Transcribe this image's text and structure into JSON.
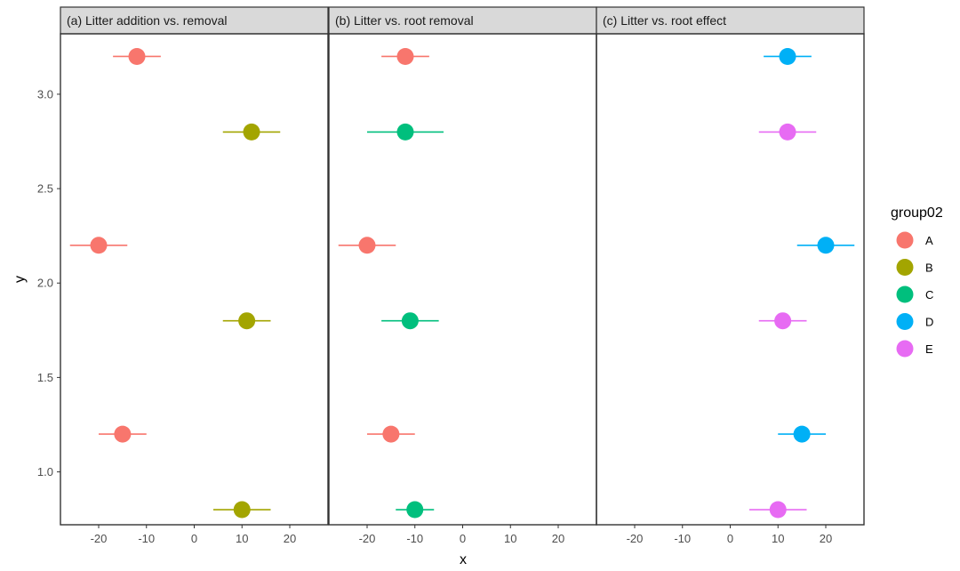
{
  "chart_data": {
    "type": "scatter",
    "xlabel": "x",
    "ylabel": "y",
    "xlim": [
      -28,
      28
    ],
    "ylim": [
      0.72,
      3.32
    ],
    "x_ticks": [
      -20,
      -10,
      0,
      10,
      20
    ],
    "y_ticks": [
      1.0,
      1.5,
      2.0,
      2.5,
      3.0
    ],
    "y_tick_labels": [
      "1.0",
      "1.5",
      "2.0",
      "2.5",
      "3.0"
    ],
    "legend": {
      "title": "group02",
      "placement": "right",
      "entries": [
        {
          "name": "A",
          "color": "#F8766D"
        },
        {
          "name": "B",
          "color": "#A3A500"
        },
        {
          "name": "C",
          "color": "#00BF7D"
        },
        {
          "name": "D",
          "color": "#00B0F6"
        },
        {
          "name": "E",
          "color": "#E76BF3"
        }
      ]
    },
    "panels": [
      {
        "title": "(a) Litter addition vs. removal",
        "points": [
          {
            "group": "A",
            "x": -12,
            "y": 3.2,
            "xmin": -17,
            "xmax": -7
          },
          {
            "group": "B",
            "x": 12,
            "y": 2.8,
            "xmin": 6,
            "xmax": 18
          },
          {
            "group": "A",
            "x": -20,
            "y": 2.2,
            "xmin": -26,
            "xmax": -14
          },
          {
            "group": "B",
            "x": 11,
            "y": 1.8,
            "xmin": 6,
            "xmax": 16
          },
          {
            "group": "A",
            "x": -15,
            "y": 1.2,
            "xmin": -20,
            "xmax": -10
          },
          {
            "group": "B",
            "x": 10,
            "y": 0.8,
            "xmin": 4,
            "xmax": 16
          }
        ]
      },
      {
        "title": "(b) Litter vs. root removal",
        "points": [
          {
            "group": "A",
            "x": -12,
            "y": 3.2,
            "xmin": -17,
            "xmax": -7
          },
          {
            "group": "C",
            "x": -12,
            "y": 2.8,
            "xmin": -20,
            "xmax": -4
          },
          {
            "group": "A",
            "x": -20,
            "y": 2.2,
            "xmin": -26,
            "xmax": -14
          },
          {
            "group": "C",
            "x": -11,
            "y": 1.8,
            "xmin": -17,
            "xmax": -5
          },
          {
            "group": "A",
            "x": -15,
            "y": 1.2,
            "xmin": -20,
            "xmax": -10
          },
          {
            "group": "C",
            "x": -10,
            "y": 0.8,
            "xmin": -14,
            "xmax": -6
          }
        ]
      },
      {
        "title": "(c) Litter  vs. root effect",
        "points": [
          {
            "group": "D",
            "x": 12,
            "y": 3.2,
            "xmin": 7,
            "xmax": 17
          },
          {
            "group": "E",
            "x": 12,
            "y": 2.8,
            "xmin": 6,
            "xmax": 18
          },
          {
            "group": "D",
            "x": 20,
            "y": 2.2,
            "xmin": 14,
            "xmax": 26
          },
          {
            "group": "E",
            "x": 11,
            "y": 1.8,
            "xmin": 6,
            "xmax": 16
          },
          {
            "group": "D",
            "x": 15,
            "y": 1.2,
            "xmin": 10,
            "xmax": 20
          },
          {
            "group": "E",
            "x": 10,
            "y": 0.8,
            "xmin": 4,
            "xmax": 16
          }
        ]
      }
    ]
  }
}
